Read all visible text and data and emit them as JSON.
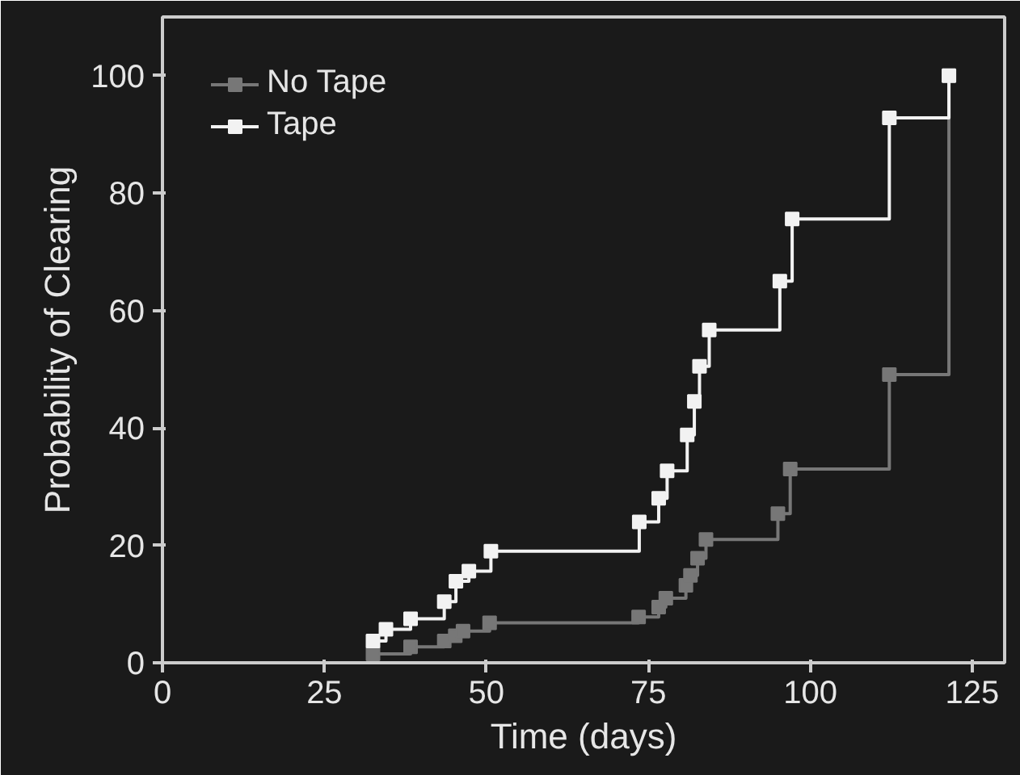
{
  "chart_data": {
    "type": "step",
    "xlabel": "Time (days)",
    "ylabel": "Probability of Clearing",
    "xlim": [
      0,
      130
    ],
    "ylim": [
      0,
      110
    ],
    "xticks": [
      0,
      25,
      50,
      75,
      100,
      125
    ],
    "yticks": [
      0,
      20,
      40,
      60,
      80,
      100
    ],
    "grid": false,
    "legend": "top left",
    "marker": "square",
    "line_style": "solid",
    "series": [
      {
        "name": "No Tape",
        "color": "#777777",
        "x": [
          32.5,
          38.3,
          43.5,
          45.2,
          46.4,
          50.5,
          73.5,
          76.6,
          77.7,
          80.8,
          81.5,
          82.6,
          83.9,
          95.0,
          96.9,
          112.2,
          121.4
        ],
        "values": [
          1.5,
          2.7,
          3.7,
          4.6,
          5.4,
          6.8,
          7.8,
          9.5,
          11,
          13.2,
          14.9,
          17.8,
          21,
          25.4,
          33,
          49.1,
          100
        ]
      },
      {
        "name": "Tape",
        "color": "#f2f2f2",
        "x": [
          32.5,
          34.5,
          38.3,
          43.5,
          45.3,
          47.3,
          50.7,
          73.6,
          76.6,
          77.9,
          81.0,
          82.1,
          82.9,
          84.4,
          95.3,
          97.2,
          112.2,
          121.4
        ],
        "values": [
          3.7,
          5.7,
          7.5,
          10.4,
          13.9,
          15.6,
          19,
          24,
          28,
          32.7,
          38.8,
          44.5,
          50.5,
          56.7,
          65,
          75.6,
          92.8,
          100
        ]
      }
    ]
  }
}
